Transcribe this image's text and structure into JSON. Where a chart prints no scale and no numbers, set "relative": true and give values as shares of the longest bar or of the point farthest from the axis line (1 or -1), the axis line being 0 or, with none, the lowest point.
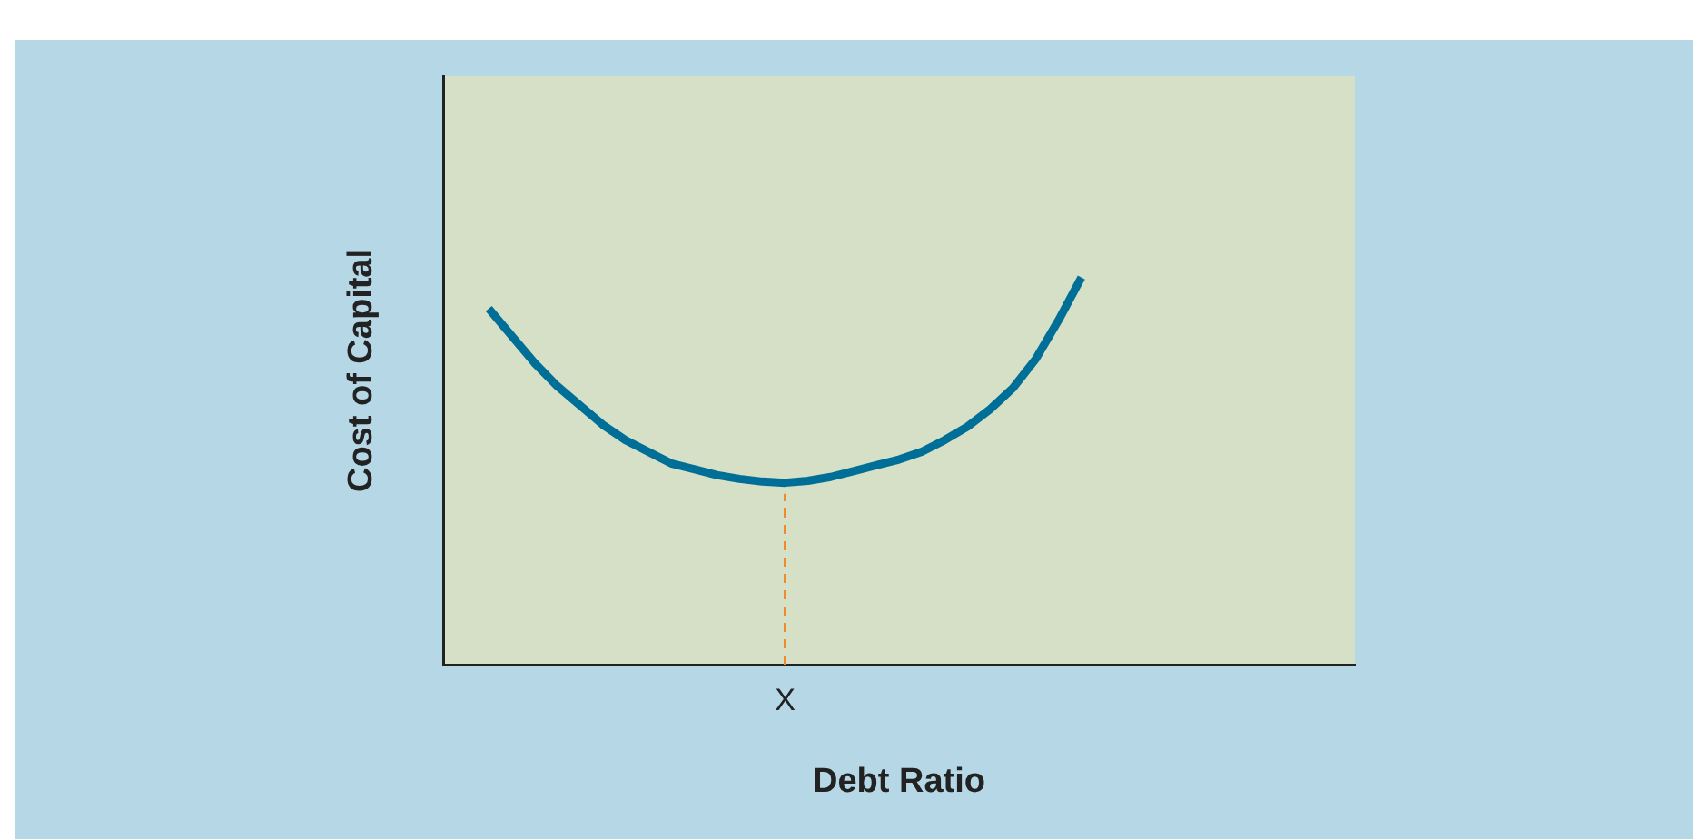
{
  "chart_data": {
    "type": "line",
    "relative": true,
    "xlabel": "Debt Ratio",
    "ylabel": "Cost of Capital",
    "categories": [
      null,
      null,
      null,
      null,
      null,
      null,
      null,
      null,
      null,
      null,
      null,
      null,
      null,
      null,
      null,
      null,
      null,
      null,
      null,
      null,
      null,
      null,
      null,
      null,
      null,
      null,
      null,
      null,
      null,
      null,
      null,
      null,
      null,
      null,
      null,
      null,
      null,
      null,
      null,
      null,
      null
    ],
    "series": [
      {
        "color": "#006f98",
        "values": [
          null,
          null,
          0.92,
          0.85,
          0.78,
          0.72,
          0.67,
          0.62,
          0.58,
          0.55,
          0.52,
          0.505,
          0.49,
          0.48,
          0.473,
          0.47,
          0.475,
          0.485,
          0.5,
          0.515,
          0.53,
          0.55,
          0.58,
          0.615,
          0.66,
          0.715,
          0.79,
          0.89,
          1,
          null,
          null,
          null,
          null,
          null,
          null,
          null,
          null,
          null,
          null,
          null,
          null
        ]
      }
    ],
    "annotations": [
      {
        "text": "X",
        "y": 0.47
      }
    ],
    "grid": false,
    "legend": false,
    "marker": "none",
    "line_style": "solid"
  }
}
